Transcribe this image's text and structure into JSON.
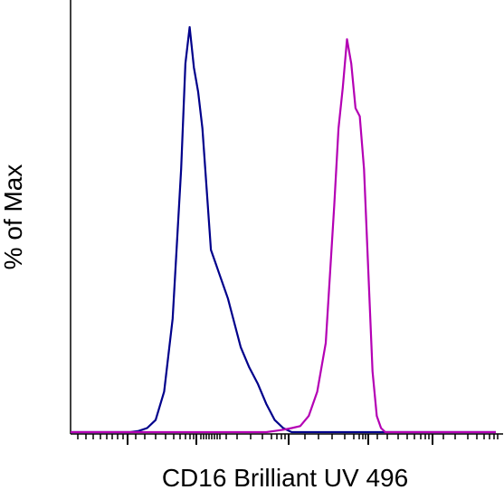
{
  "chart_data": {
    "type": "area",
    "xlabel": "CD16 Brilliant UV 496",
    "ylabel": "% of Max",
    "xscale": "log",
    "grid": false,
    "legend": "none",
    "ylim": [
      0,
      100
    ],
    "series": [
      {
        "color": "#00008b",
        "x": [
          0.0,
          0.02,
          0.04,
          0.06,
          0.08,
          0.1,
          0.12,
          0.14,
          0.16,
          0.18,
          0.2,
          0.22,
          0.24,
          0.26,
          0.27,
          0.28,
          0.29,
          0.3,
          0.31,
          0.32,
          0.33,
          0.34,
          0.35,
          0.36,
          0.37,
          0.38,
          0.39,
          0.4,
          0.42,
          0.44,
          0.46,
          0.48,
          0.5,
          0.52,
          0.54,
          0.56,
          0.58,
          1.0
        ],
        "y": [
          0,
          0,
          0,
          0,
          0,
          0,
          0,
          0,
          0.3,
          1,
          3,
          10,
          28,
          65,
          91,
          100,
          90,
          84,
          75,
          60,
          45,
          42,
          39,
          36,
          33,
          29,
          25,
          21,
          16,
          12,
          7,
          3,
          1,
          0,
          0,
          0,
          0,
          0
        ]
      },
      {
        "color": "#b400b4",
        "x": [
          0.0,
          0.46,
          0.48,
          0.5,
          0.52,
          0.54,
          0.56,
          0.58,
          0.6,
          0.62,
          0.63,
          0.64,
          0.65,
          0.66,
          0.67,
          0.68,
          0.69,
          0.7,
          0.71,
          0.72,
          0.73,
          0.74,
          0.76,
          1.0
        ],
        "y": [
          0,
          0,
          0.3,
          0.6,
          1,
          1.5,
          4,
          10,
          22,
          56,
          75,
          85,
          97,
          91,
          80,
          78,
          65,
          40,
          15,
          4,
          1,
          0,
          0,
          0
        ]
      }
    ]
  }
}
